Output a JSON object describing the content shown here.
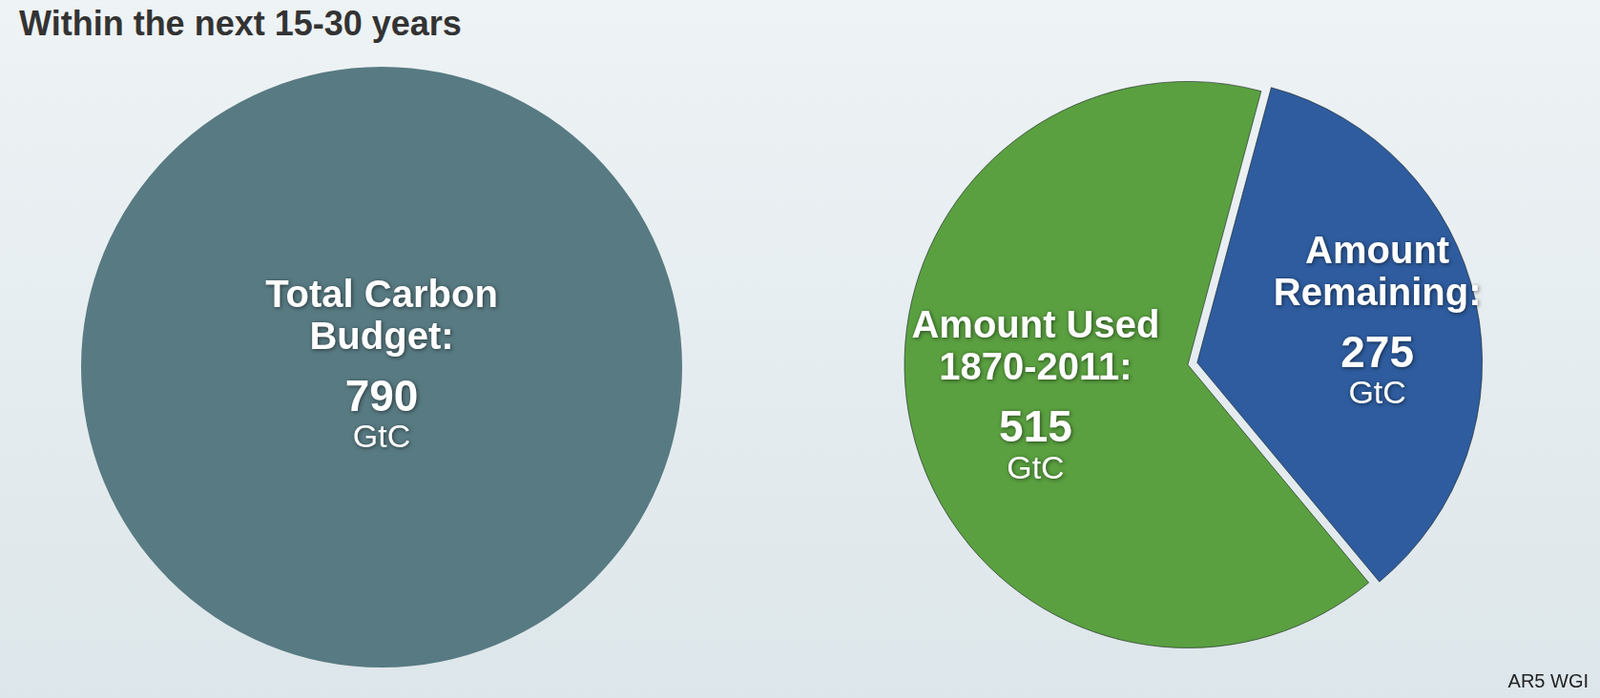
{
  "title": "Within the next 15-30 years",
  "source": "AR5 WGI",
  "chart_data": [
    {
      "type": "pie",
      "categories": [
        "Total Carbon Budget:"
      ],
      "values": [
        790
      ],
      "value_labels": [
        "790 GtC"
      ],
      "colors": [
        "#587a82"
      ],
      "data_labels": true
    },
    {
      "type": "pie",
      "categories": [
        "Amount Used 1870-2011:",
        "Amount Remaining:"
      ],
      "values": [
        515,
        275
      ],
      "value_labels": [
        "515 GtC",
        "275 GtC"
      ],
      "colors": [
        "#5aa040",
        "#2e5c9e"
      ],
      "data_labels": true
    }
  ]
}
